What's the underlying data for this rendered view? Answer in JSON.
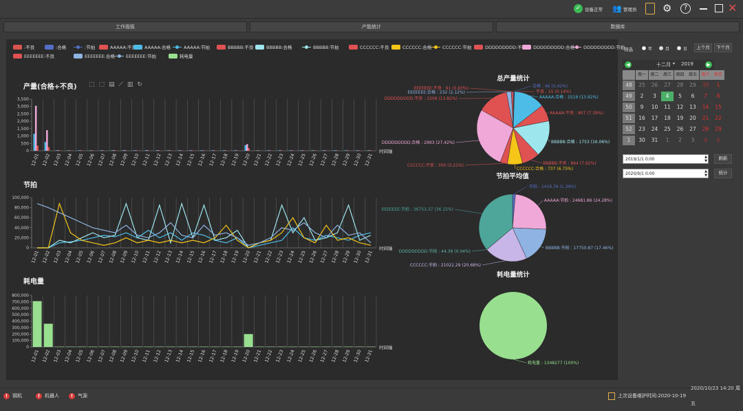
{
  "app": {
    "device_status": "设备正常",
    "user": "管理员"
  },
  "tabs": [
    "工作面板",
    "产能统计",
    "数据库"
  ],
  "legend": [
    {
      "label": ":不良",
      "color": "#d9534f",
      "kind": "bar"
    },
    {
      "label": ":合格",
      "color": "#5470c6",
      "kind": "bar"
    },
    {
      "label": ":节拍",
      "color": "#5470c6",
      "kind": "line"
    },
    {
      "label": "AAAAA:不良",
      "color": "#e05252",
      "kind": "bar"
    },
    {
      "label": "AAAAA:合格",
      "color": "#4dbde8",
      "kind": "bar"
    },
    {
      "label": "AAAAA:节拍",
      "color": "#4dbde8",
      "kind": "line"
    },
    {
      "label": "BBBBB:不良",
      "color": "#e05252",
      "kind": "bar"
    },
    {
      "label": "BBBBB:合格",
      "color": "#9ee6ee",
      "kind": "bar"
    },
    {
      "label": "BBBBB:节拍",
      "color": "#9ee6ee",
      "kind": "line"
    },
    {
      "label": "CCCCCC:不良",
      "color": "#e05252",
      "kind": "bar"
    },
    {
      "label": "CCCCCC:合格",
      "color": "#f5c518",
      "kind": "bar"
    },
    {
      "label": "CCCCCC:节拍",
      "color": "#f5c518",
      "kind": "line"
    },
    {
      "label": "DDDDDDDDD:不良",
      "color": "#e05252",
      "kind": "bar"
    },
    {
      "label": "DDDDDDDDD:合格",
      "color": "#f0a8d8",
      "kind": "bar"
    },
    {
      "label": "DDDDDDDDD:节拍",
      "color": "#f0a8d8",
      "kind": "line"
    },
    {
      "label": "EEEEEEE:不良",
      "color": "#e05252",
      "kind": "bar"
    },
    {
      "label": "EEEEEEE:合格",
      "color": "#8fb4e3",
      "kind": "bar"
    },
    {
      "label": "EEEEEEE:节拍",
      "color": "#8fb4e3",
      "kind": "line"
    },
    {
      "label": "耗电量",
      "color": "#98e08f",
      "kind": "bar"
    }
  ],
  "chart_data": [
    {
      "type": "bar",
      "title": "产量(合格+不良)",
      "xlabel": "时间轴",
      "ylim": [
        0,
        3500
      ],
      "ticks": [
        "0",
        "500",
        "1,000",
        "1,500",
        "2,000",
        "2,500",
        "3,000",
        "3,500"
      ],
      "categories": [
        "12-01",
        "12-02",
        "12-03",
        "12-04",
        "12-05",
        "12-06",
        "12-07",
        "12-08",
        "12-09",
        "12-10",
        "12-11",
        "12-12",
        "12-13",
        "12-14",
        "12-15",
        "12-16",
        "12-17",
        "12-18",
        "12-19",
        "12-20",
        "12-21",
        "12-22",
        "12-23",
        "12-24",
        "12-25",
        "12-26",
        "12-27",
        "12-28",
        "12-29",
        "12-30",
        "12-31"
      ],
      "series": [
        {
          "name": "AAAAA:合格",
          "color": "#4dbde8",
          "values": [
            1150,
            600,
            30,
            20,
            30,
            20,
            30,
            30,
            40,
            30,
            30,
            30,
            30,
            30,
            30,
            30,
            30,
            30,
            30,
            380,
            20,
            30,
            30,
            30,
            30,
            30,
            30,
            30,
            30,
            30,
            30
          ]
        },
        {
          "name": "DDDDDDDDD:合格",
          "color": "#f0a8d8",
          "values": [
            3050,
            1400,
            40,
            30,
            30,
            30,
            30,
            40,
            40,
            30,
            40,
            40,
            30,
            30,
            30,
            30,
            30,
            30,
            30,
            450,
            30,
            30,
            30,
            30,
            30,
            30,
            30,
            30,
            30,
            30,
            30
          ]
        },
        {
          "name": "AAAAA:不良",
          "color": "#e05252",
          "values": [
            350,
            250,
            20,
            10,
            20,
            10,
            10,
            20,
            20,
            10,
            20,
            20,
            10,
            10,
            20,
            10,
            10,
            10,
            10,
            180,
            10,
            10,
            10,
            10,
            10,
            10,
            10,
            10,
            10,
            10,
            10
          ]
        }
      ]
    },
    {
      "type": "line",
      "title": "节拍",
      "xlabel": "时间轴",
      "ylim": [
        0,
        100000
      ],
      "ticks": [
        "0",
        "20,000",
        "40,000",
        "60,000",
        "80,000",
        "100,000"
      ],
      "categories": [
        "12-01",
        "12-02",
        "12-03",
        "12-04",
        "12-05",
        "12-06",
        "12-07",
        "12-08",
        "12-09",
        "12-10",
        "12-11",
        "12-12",
        "12-13",
        "12-14",
        "12-15",
        "12-16",
        "12-17",
        "12-18",
        "12-19",
        "12-20",
        "12-21",
        "12-22",
        "12-23",
        "12-24",
        "12-25",
        "12-26",
        "12-27",
        "12-28",
        "12-29",
        "12-30",
        "12-31"
      ],
      "series": [
        {
          "name": "AAAAA:节拍",
          "color": "#4dbde8",
          "values": [
            0,
            0,
            10000,
            12000,
            15000,
            20000,
            25000,
            22000,
            30000,
            20000,
            35000,
            20000,
            30000,
            15000,
            30000,
            25000,
            15000,
            10000,
            20000,
            0,
            5000,
            10000,
            15000,
            40000,
            20000,
            15000,
            25000,
            20000,
            15000,
            25000,
            30000
          ]
        },
        {
          "name": "BBBBB:节拍",
          "color": "#9ee6ee",
          "values": [
            0,
            0,
            15000,
            10000,
            20000,
            30000,
            20000,
            25000,
            88000,
            20000,
            15000,
            85000,
            10000,
            88000,
            20000,
            85000,
            15000,
            20000,
            35000,
            0,
            10000,
            15000,
            85000,
            30000,
            60000,
            15000,
            20000,
            30000,
            85000,
            15000,
            25000
          ]
        },
        {
          "name": "CCCCCC:节拍",
          "color": "#f5c518",
          "values": [
            0,
            0,
            88000,
            30000,
            15000,
            10000,
            5000,
            10000,
            20000,
            10000,
            15000,
            10000,
            15000,
            10000,
            15000,
            10000,
            20000,
            45000,
            15000,
            0,
            10000,
            15000,
            30000,
            60000,
            20000,
            10000,
            45000,
            15000,
            20000,
            10000,
            5000
          ]
        },
        {
          "name": "EEEEEEE:节拍",
          "color": "#8fb4e3",
          "values": [
            88000,
            80000,
            70000,
            60000,
            50000,
            40000,
            35000,
            30000,
            45000,
            25000,
            20000,
            30000,
            50000,
            25000,
            20000,
            45000,
            25000,
            30000,
            20000,
            5000,
            10000,
            20000,
            40000,
            35000,
            50000,
            30000,
            20000,
            45000,
            25000,
            30000,
            10000
          ]
        }
      ]
    },
    {
      "type": "bar",
      "title": "耗电量",
      "xlabel": "时间轴",
      "ylim": [
        0,
        800000
      ],
      "ticks": [
        "0",
        "100,000",
        "200,000",
        "300,000",
        "400,000",
        "500,000",
        "600,000",
        "700,000",
        "800,000"
      ],
      "categories": [
        "12-01",
        "12-02",
        "12-03",
        "12-04",
        "12-05",
        "12-06",
        "12-07",
        "12-08",
        "12-09",
        "12-10",
        "12-11",
        "12-12",
        "12-13",
        "12-14",
        "12-15",
        "12-16",
        "12-17",
        "12-18",
        "12-19",
        "12-20",
        "12-21",
        "12-22",
        "12-23",
        "12-24",
        "12-25",
        "12-26",
        "12-27",
        "12-28",
        "12-29",
        "12-30",
        "12-31"
      ],
      "series": [
        {
          "name": "耗电量",
          "color": "#98e08f",
          "values": [
            710000,
            360000,
            5000,
            5000,
            5000,
            5000,
            5000,
            5000,
            5000,
            5000,
            5000,
            5000,
            5000,
            5000,
            5000,
            5000,
            5000,
            5000,
            5000,
            200000,
            5000,
            5000,
            5000,
            5000,
            5000,
            5000,
            5000,
            5000,
            5000,
            5000,
            5000
          ]
        }
      ]
    },
    {
      "type": "pie",
      "title": "总产量统计",
      "slices": [
        {
          "label": "合格 : 46 (0.42%)",
          "value": 46,
          "color": "#5470c6"
        },
        {
          "label": "不良 : 15 (0.14%)",
          "value": 15,
          "color": "#d9534f"
        },
        {
          "label": "AAAAA:合格 : 1519 (13.92%)",
          "value": 1519,
          "color": "#4dbde8"
        },
        {
          "label": "AAAAA:不良 : 807 (7.39%)",
          "value": 807,
          "color": "#e05252"
        },
        {
          "label": "BBBBB:合格 : 1753 (16.06%)",
          "value": 1753,
          "color": "#9ee6ee"
        },
        {
          "label": "BBBBB:不良 : 864 (7.92%)",
          "value": 864,
          "color": "#e05252"
        },
        {
          "label": "CCCCCC:合格 : 737 (6.75%)",
          "value": 737,
          "color": "#f5c518"
        },
        {
          "label": "CCCCCC:不良 : 350 (3.21%)",
          "value": 350,
          "color": "#e05252"
        },
        {
          "label": "DDDDDDDDD:合格 : 2993 (27.42%)",
          "value": 2993,
          "color": "#f0a8d8"
        },
        {
          "label": "DDDDDDDDD:不良 : 1508 (13.82%)",
          "value": 1508,
          "color": "#e05252"
        },
        {
          "label": "EEEEEEE:合格 : 232 (2.12%)",
          "value": 232,
          "color": "#8fb4e3"
        },
        {
          "label": "EEEEEEE:不良 : 91 (0.83%)",
          "value": 91,
          "color": "#e05252"
        }
      ]
    },
    {
      "type": "pie",
      "title": "节拍平均值",
      "slices": [
        {
          "label": ":节拍 : 1416.39 (1.39%)",
          "value": 1416.39,
          "color": "#5470c6"
        },
        {
          "label": "AAAAA:节拍 : 24681.86 (24.28%)",
          "value": 24681.86,
          "color": "#f0a8d8"
        },
        {
          "label": "BBBBB:节拍 : 17750.87 (17.46%)",
          "value": 17750.87,
          "color": "#8fb4e3"
        },
        {
          "label": "CCCCCC:节拍 : 21021.29 (20.68%)",
          "value": 21021.29,
          "color": "#c9b6e8"
        },
        {
          "label": "DDDDDDDDD:节拍 : 44.39 (0.04%)",
          "value": 44.39,
          "color": "#5fb3a8"
        },
        {
          "label": "EEEEEEE:节拍 : 36753.37 (36.15%)",
          "value": 36753.37,
          "color": "#4ea59a"
        }
      ]
    },
    {
      "type": "pie",
      "title": "耗电量统计",
      "slices": [
        {
          "label": "耗电量 : 1348277 (100%)",
          "value": 1348277,
          "color": "#98e08f"
        }
      ]
    }
  ],
  "filter": {
    "label": "筛选",
    "opts": [
      "年",
      "月",
      "日"
    ],
    "prev_month": "上个月",
    "next_month": "下个月"
  },
  "calendar": {
    "month": "十二月",
    "year": "2019",
    "weekdays": [
      "周一",
      "周二",
      "周三",
      "周四",
      "周五",
      "周六",
      "周日"
    ],
    "weeks": [
      {
        "wk": "48",
        "days": [
          "25",
          "26",
          "27",
          "28",
          "29",
          "30",
          "1"
        ]
      },
      {
        "wk": "49",
        "days": [
          "2",
          "3",
          "4",
          "5",
          "6",
          "7",
          "8"
        ]
      },
      {
        "wk": "50",
        "days": [
          "9",
          "10",
          "11",
          "12",
          "13",
          "14",
          "15"
        ]
      },
      {
        "wk": "51",
        "days": [
          "16",
          "17",
          "18",
          "19",
          "20",
          "21",
          "22"
        ]
      },
      {
        "wk": "52",
        "days": [
          "23",
          "24",
          "25",
          "26",
          "27",
          "28",
          "29"
        ]
      },
      {
        "wk": "1",
        "days": [
          "30",
          "31",
          "1",
          "2",
          "3",
          "4",
          "5"
        ]
      }
    ]
  },
  "dates": {
    "start": "2019/1/1 0:00",
    "end": "2020/9/1 0:00",
    "refresh": "刷新",
    "stats": "统计"
  },
  "status": {
    "alarms": [
      "钢机",
      "机器人",
      "气源"
    ],
    "last_time_label": "上次设备维护时间:2020-10-19",
    "clock": "2020/10/23  14:20  周五"
  }
}
